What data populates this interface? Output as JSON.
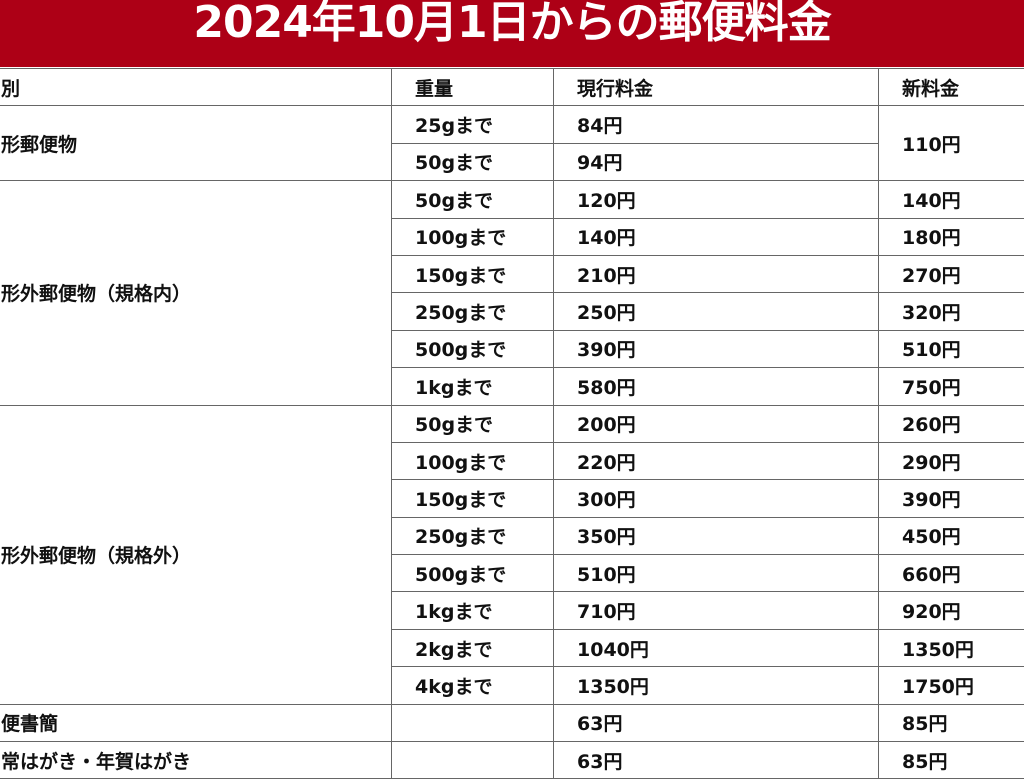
{
  "title": "2024年10月1日からの郵便料金",
  "header": {
    "type": "別",
    "weight": "重量",
    "current": "現行料金",
    "new": "新料金"
  },
  "groups": [
    {
      "type": "形郵便物",
      "shared_new": "110円",
      "rows": [
        {
          "weight": "25gまで",
          "current": "84円"
        },
        {
          "weight": "50gまで",
          "current": "94円"
        }
      ]
    },
    {
      "type": "形外郵便物（規格内）",
      "rows": [
        {
          "weight": "50gまで",
          "current": "120円",
          "new": "140円"
        },
        {
          "weight": "100gまで",
          "current": "140円",
          "new": "180円"
        },
        {
          "weight": "150gまで",
          "current": "210円",
          "new": "270円"
        },
        {
          "weight": "250gまで",
          "current": "250円",
          "new": "320円"
        },
        {
          "weight": "500gまで",
          "current": "390円",
          "new": "510円"
        },
        {
          "weight": "1kgまで",
          "current": "580円",
          "new": "750円"
        }
      ]
    },
    {
      "type": "形外郵便物（規格外）",
      "rows": [
        {
          "weight": "50gまで",
          "current": "200円",
          "new": "260円"
        },
        {
          "weight": "100gまで",
          "current": "220円",
          "new": "290円"
        },
        {
          "weight": "150gまで",
          "current": "300円",
          "new": "390円"
        },
        {
          "weight": "250gまで",
          "current": "350円",
          "new": "450円"
        },
        {
          "weight": "500gまで",
          "current": "510円",
          "new": "660円"
        },
        {
          "weight": "1kgまで",
          "current": "710円",
          "new": "920円"
        },
        {
          "weight": "2kgまで",
          "current": "1040円",
          "new": "1350円"
        },
        {
          "weight": "4kgまで",
          "current": "1350円",
          "new": "1750円"
        }
      ]
    },
    {
      "type": "便書簡",
      "rows": [
        {
          "weight": "",
          "current": "63円",
          "new": "85円"
        }
      ]
    },
    {
      "type": "常はがき・年賀はがき",
      "rows": [
        {
          "weight": "",
          "current": "63円",
          "new": "85円"
        }
      ]
    }
  ],
  "colors": {
    "banner": "#ad0016",
    "banner_text": "#ffffff",
    "grid": "#666666"
  }
}
